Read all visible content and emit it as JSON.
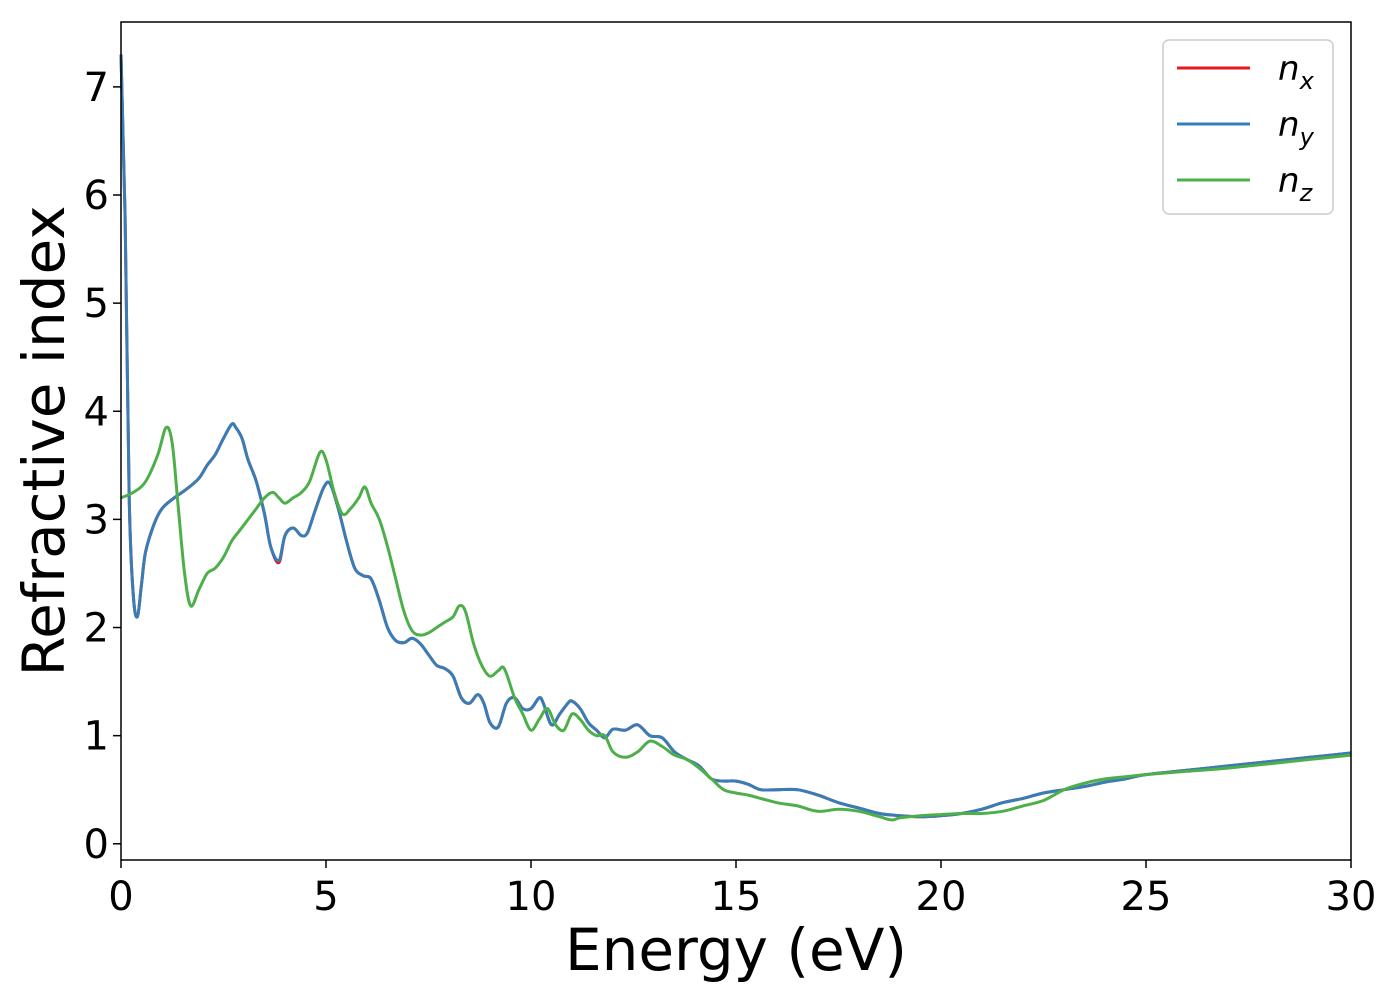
{
  "chart_data": {
    "type": "line",
    "xlabel": "Energy (eV)",
    "ylabel": "Refractive index",
    "xlim": [
      0,
      30
    ],
    "ylim": [
      -0.15,
      7.6
    ],
    "xticks": [
      "0",
      "5",
      "10",
      "15",
      "20",
      "25",
      "30"
    ],
    "yticks": [
      "0",
      "1",
      "2",
      "3",
      "4",
      "5",
      "6",
      "7"
    ],
    "grid": false,
    "legend_position": "top-right",
    "series": [
      {
        "name": "n_x",
        "label_base": "n",
        "label_sub": "x",
        "color": "#e41a1c",
        "x": [
          0,
          0.1,
          0.2,
          0.3,
          0.4,
          0.5,
          0.6,
          0.8,
          1.0,
          1.3,
          1.6,
          1.9,
          2.1,
          2.3,
          2.5,
          2.7,
          2.8,
          2.95,
          3.1,
          3.3,
          3.5,
          3.65,
          3.85,
          4.0,
          4.2,
          4.4,
          4.55,
          4.75,
          4.95,
          5.1,
          5.3,
          5.5,
          5.7,
          5.9,
          6.1,
          6.3,
          6.5,
          6.7,
          6.9,
          7.1,
          7.3,
          7.5,
          7.7,
          7.9,
          8.1,
          8.3,
          8.5,
          8.7,
          8.85,
          9.0,
          9.2,
          9.4,
          9.6,
          9.8,
          10.0,
          10.2,
          10.3,
          10.5,
          10.7,
          10.9,
          11.0,
          11.2,
          11.4,
          11.6,
          11.8,
          12.0,
          12.3,
          12.6,
          12.9,
          13.2,
          13.5,
          13.8,
          14.1,
          14.4,
          14.7,
          15.0,
          15.3,
          15.6,
          16.0,
          16.5,
          17.0,
          17.5,
          18.0,
          18.5,
          19.0,
          19.5,
          20.0,
          20.5,
          21.0,
          21.5,
          22.0,
          22.5,
          23.0,
          23.5,
          24.0,
          24.5,
          25.0,
          26.0,
          27.0,
          28.0,
          29.0,
          30.0
        ],
        "y": [
          7.3,
          5.8,
          3.2,
          2.3,
          2.1,
          2.4,
          2.7,
          2.95,
          3.1,
          3.2,
          3.28,
          3.38,
          3.5,
          3.6,
          3.75,
          3.88,
          3.85,
          3.75,
          3.55,
          3.35,
          3.05,
          2.75,
          2.6,
          2.85,
          2.92,
          2.85,
          2.88,
          3.1,
          3.3,
          3.33,
          3.1,
          2.8,
          2.55,
          2.48,
          2.45,
          2.25,
          2.0,
          1.88,
          1.86,
          1.9,
          1.85,
          1.75,
          1.65,
          1.62,
          1.55,
          1.35,
          1.3,
          1.38,
          1.3,
          1.12,
          1.08,
          1.3,
          1.35,
          1.25,
          1.25,
          1.35,
          1.3,
          1.1,
          1.2,
          1.3,
          1.32,
          1.25,
          1.12,
          1.05,
          0.98,
          1.06,
          1.05,
          1.1,
          1.0,
          0.98,
          0.85,
          0.78,
          0.72,
          0.6,
          0.58,
          0.58,
          0.55,
          0.5,
          0.5,
          0.5,
          0.45,
          0.38,
          0.33,
          0.28,
          0.26,
          0.25,
          0.26,
          0.28,
          0.32,
          0.38,
          0.42,
          0.47,
          0.5,
          0.53,
          0.57,
          0.6,
          0.64,
          0.68,
          0.72,
          0.76,
          0.8,
          0.84
        ]
      },
      {
        "name": "n_y",
        "label_base": "n",
        "label_sub": "y",
        "color": "#377eb8",
        "x": [
          0,
          0.1,
          0.2,
          0.3,
          0.4,
          0.5,
          0.6,
          0.8,
          1.0,
          1.3,
          1.6,
          1.9,
          2.1,
          2.3,
          2.5,
          2.7,
          2.8,
          2.95,
          3.1,
          3.3,
          3.5,
          3.65,
          3.85,
          4.0,
          4.2,
          4.4,
          4.55,
          4.75,
          4.95,
          5.1,
          5.3,
          5.5,
          5.7,
          5.9,
          6.1,
          6.3,
          6.5,
          6.7,
          6.9,
          7.1,
          7.3,
          7.5,
          7.7,
          7.9,
          8.1,
          8.3,
          8.5,
          8.7,
          8.85,
          9.0,
          9.2,
          9.4,
          9.6,
          9.8,
          10.0,
          10.2,
          10.3,
          10.5,
          10.7,
          10.9,
          11.0,
          11.2,
          11.4,
          11.6,
          11.8,
          12.0,
          12.3,
          12.6,
          12.9,
          13.2,
          13.5,
          13.8,
          14.1,
          14.4,
          14.7,
          15.0,
          15.3,
          15.6,
          16.0,
          16.5,
          17.0,
          17.5,
          18.0,
          18.5,
          19.0,
          19.5,
          20.0,
          20.5,
          21.0,
          21.5,
          22.0,
          22.5,
          23.0,
          23.5,
          24.0,
          24.5,
          25.0,
          26.0,
          27.0,
          28.0,
          29.0,
          30.0
        ],
        "y": [
          7.3,
          5.8,
          3.2,
          2.3,
          2.1,
          2.4,
          2.7,
          2.95,
          3.1,
          3.2,
          3.28,
          3.38,
          3.5,
          3.6,
          3.75,
          3.88,
          3.85,
          3.75,
          3.55,
          3.35,
          3.05,
          2.75,
          2.62,
          2.85,
          2.92,
          2.85,
          2.88,
          3.1,
          3.3,
          3.33,
          3.1,
          2.8,
          2.55,
          2.48,
          2.45,
          2.25,
          2.0,
          1.88,
          1.86,
          1.9,
          1.85,
          1.75,
          1.65,
          1.62,
          1.55,
          1.35,
          1.3,
          1.38,
          1.3,
          1.12,
          1.08,
          1.3,
          1.35,
          1.25,
          1.25,
          1.35,
          1.3,
          1.1,
          1.2,
          1.3,
          1.32,
          1.25,
          1.12,
          1.05,
          0.98,
          1.06,
          1.05,
          1.1,
          1.0,
          0.98,
          0.85,
          0.78,
          0.72,
          0.6,
          0.58,
          0.58,
          0.55,
          0.5,
          0.5,
          0.5,
          0.45,
          0.38,
          0.33,
          0.28,
          0.26,
          0.25,
          0.26,
          0.28,
          0.32,
          0.38,
          0.42,
          0.47,
          0.5,
          0.53,
          0.57,
          0.6,
          0.64,
          0.68,
          0.72,
          0.76,
          0.8,
          0.84
        ]
      },
      {
        "name": "n_z",
        "label_base": "n",
        "label_sub": "z",
        "color": "#4daf4a",
        "x": [
          0,
          0.3,
          0.6,
          0.9,
          1.1,
          1.25,
          1.4,
          1.55,
          1.7,
          1.9,
          2.1,
          2.3,
          2.5,
          2.7,
          2.9,
          3.1,
          3.3,
          3.5,
          3.7,
          3.85,
          4.0,
          4.2,
          4.4,
          4.6,
          4.85,
          5.0,
          5.2,
          5.4,
          5.6,
          5.8,
          5.95,
          6.1,
          6.3,
          6.5,
          6.7,
          6.9,
          7.1,
          7.3,
          7.5,
          7.7,
          7.9,
          8.1,
          8.25,
          8.4,
          8.6,
          8.8,
          9.0,
          9.2,
          9.35,
          9.6,
          9.8,
          10.0,
          10.2,
          10.4,
          10.6,
          10.8,
          11.0,
          11.2,
          11.4,
          11.6,
          11.8,
          12.0,
          12.3,
          12.6,
          12.9,
          13.2,
          13.5,
          13.8,
          14.1,
          14.4,
          14.7,
          15.0,
          15.3,
          15.6,
          16.0,
          16.5,
          17.0,
          17.5,
          18.0,
          18.5,
          18.8,
          19.0,
          19.5,
          20.0,
          20.5,
          21.0,
          21.5,
          22.0,
          22.5,
          23.0,
          23.5,
          24.0,
          24.5,
          25.0,
          26.0,
          27.0,
          28.0,
          29.0,
          30.0
        ],
        "y": [
          3.2,
          3.25,
          3.35,
          3.6,
          3.85,
          3.7,
          3.1,
          2.5,
          2.2,
          2.35,
          2.5,
          2.55,
          2.65,
          2.8,
          2.9,
          3.0,
          3.1,
          3.2,
          3.25,
          3.2,
          3.15,
          3.2,
          3.25,
          3.35,
          3.62,
          3.55,
          3.25,
          3.05,
          3.1,
          3.2,
          3.3,
          3.15,
          3.0,
          2.75,
          2.45,
          2.15,
          1.97,
          1.93,
          1.95,
          2.0,
          2.05,
          2.1,
          2.2,
          2.15,
          1.85,
          1.65,
          1.55,
          1.6,
          1.62,
          1.35,
          1.2,
          1.05,
          1.15,
          1.25,
          1.1,
          1.05,
          1.2,
          1.15,
          1.05,
          1.0,
          1.0,
          0.85,
          0.8,
          0.85,
          0.95,
          0.9,
          0.82,
          0.78,
          0.7,
          0.6,
          0.5,
          0.47,
          0.45,
          0.42,
          0.38,
          0.35,
          0.3,
          0.32,
          0.3,
          0.25,
          0.22,
          0.24,
          0.26,
          0.27,
          0.28,
          0.28,
          0.3,
          0.35,
          0.4,
          0.5,
          0.56,
          0.6,
          0.62,
          0.64,
          0.67,
          0.7,
          0.74,
          0.78,
          0.82
        ]
      }
    ]
  }
}
